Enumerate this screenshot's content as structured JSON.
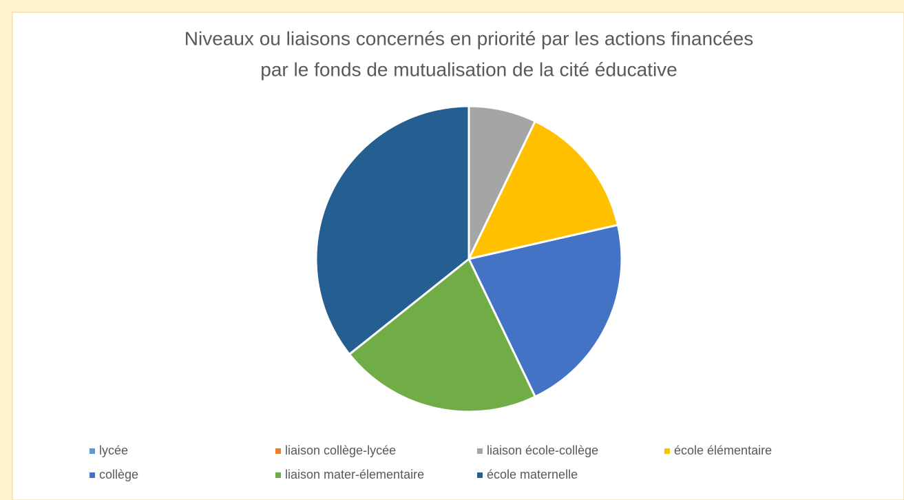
{
  "chart_data": {
    "type": "pie",
    "title": [
      "Niveaux ou liaisons concernés en priorité par les actions financées",
      "par le fonds de mutualisation de la cité éducative"
    ],
    "categories": [
      "lycée",
      "liaison collège-lycée",
      "liaison école-collège",
      "école élémentaire",
      "collège",
      "liaison mater-élementaire",
      "école maternelle"
    ],
    "values": [
      0,
      0,
      1,
      2,
      3,
      3,
      5
    ],
    "colors": [
      "#5b9bd5",
      "#ed7d31",
      "#a5a5a5",
      "#ffc000",
      "#4472c4",
      "#70ad47",
      "#255e91"
    ],
    "legend": "bottom"
  }
}
